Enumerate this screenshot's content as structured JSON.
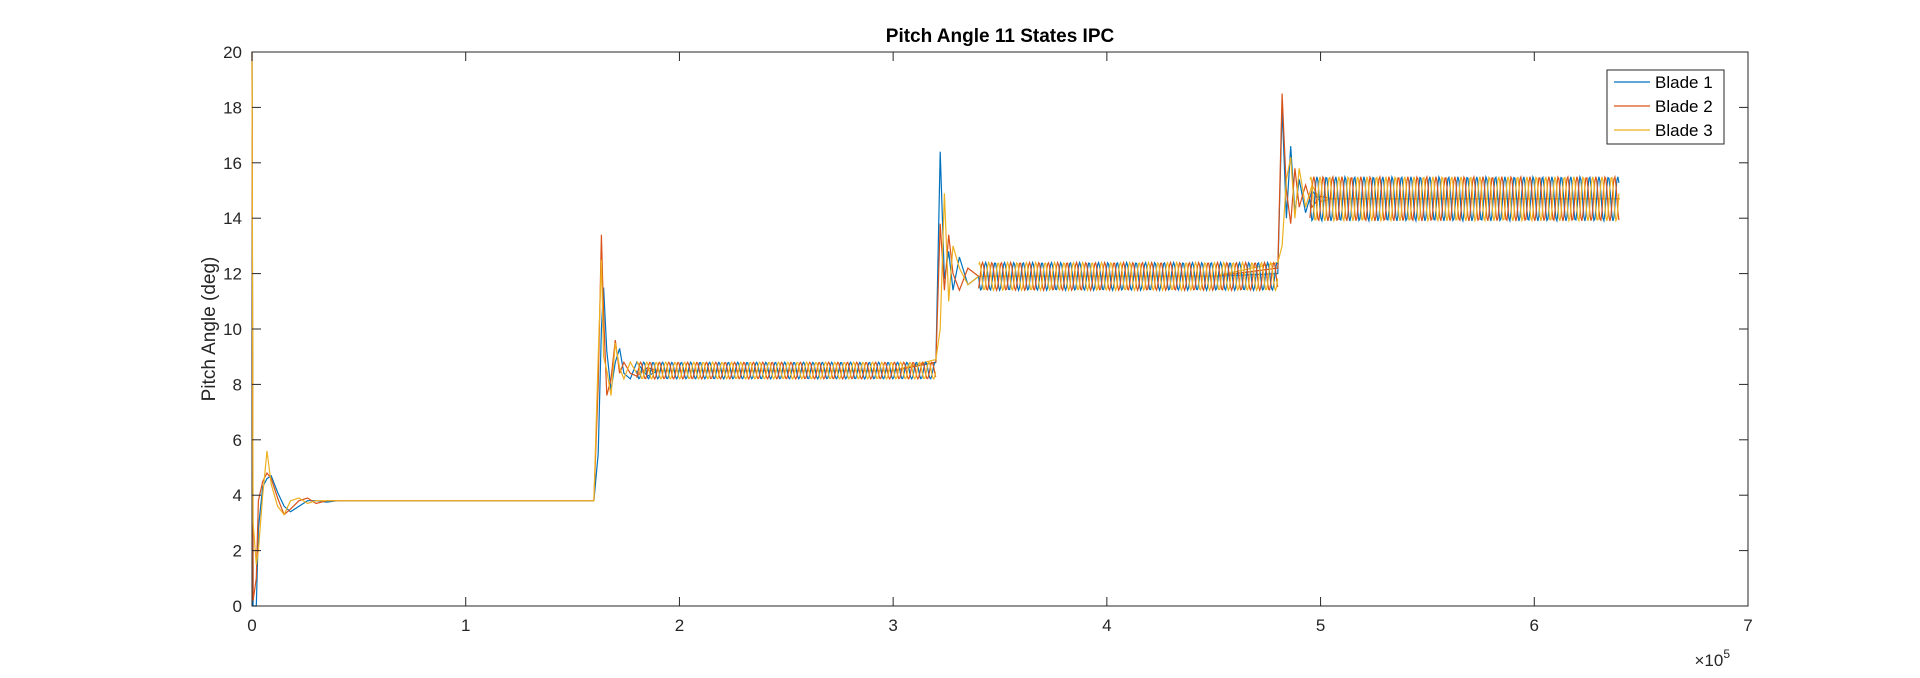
{
  "chart_data": {
    "type": "line",
    "title": "Pitch Angle 11 States IPC",
    "xlabel": "",
    "ylabel": "Pitch Angle (deg)",
    "xlim": [
      0,
      7
    ],
    "ylim": [
      0,
      20
    ],
    "x_ticks": [
      0,
      1,
      2,
      3,
      4,
      5,
      6,
      7
    ],
    "y_ticks": [
      0,
      2,
      4,
      6,
      8,
      10,
      12,
      14,
      16,
      18,
      20
    ],
    "x_exponent_base": "×10",
    "x_exponent_power": "5",
    "grid": false,
    "legend_position": "top-right",
    "colors": {
      "blade1": "#0072BD",
      "blade2": "#D95319",
      "blade3": "#EDB120",
      "axis": "#262626"
    },
    "series": [
      {
        "name": "Blade 1",
        "x": [
          0,
          0.005,
          0.02,
          0.03,
          0.05,
          0.07,
          0.09,
          0.12,
          0.15,
          0.18,
          0.22,
          0.26,
          0.3,
          0.35,
          0.4,
          0.6,
          0.8,
          1.0,
          1.2,
          1.4,
          1.55,
          1.6,
          1.62,
          1.635,
          1.645,
          1.66,
          1.68,
          1.7,
          1.72,
          1.74,
          1.77,
          1.8,
          1.85,
          1.9,
          2.0,
          2.5,
          3.0,
          3.2,
          3.22,
          3.24,
          3.26,
          3.28,
          3.31,
          3.35,
          3.4,
          3.45,
          3.5,
          4.0,
          4.5,
          4.8,
          4.82,
          4.84,
          4.86,
          4.88,
          4.9,
          4.93,
          4.96,
          5.0,
          5.05,
          5.1,
          6.0,
          6.4
        ],
        "y": [
          20,
          0,
          0,
          2.8,
          4.3,
          4.6,
          4.7,
          4.1,
          3.6,
          3.4,
          3.6,
          3.8,
          3.8,
          3.75,
          3.8,
          3.8,
          3.8,
          3.8,
          3.8,
          3.8,
          3.8,
          3.8,
          5.5,
          10.0,
          11.5,
          9.2,
          7.8,
          8.8,
          9.3,
          8.4,
          8.2,
          8.8,
          8.3,
          8.5,
          8.5,
          8.5,
          8.5,
          8.8,
          16.4,
          11.8,
          12.8,
          11.4,
          12.6,
          11.6,
          11.9,
          11.9,
          11.9,
          11.9,
          11.9,
          12.0,
          18.0,
          14.0,
          16.6,
          14.2,
          15.4,
          14.2,
          15.0,
          14.6,
          14.7,
          14.7,
          14.7,
          14.7
        ]
      },
      {
        "name": "Blade 2",
        "x": [
          0,
          0.005,
          0.02,
          0.03,
          0.05,
          0.07,
          0.09,
          0.12,
          0.15,
          0.18,
          0.22,
          0.26,
          0.3,
          0.35,
          0.4,
          0.6,
          0.8,
          1.0,
          1.2,
          1.4,
          1.55,
          1.6,
          1.62,
          1.635,
          1.645,
          1.66,
          1.68,
          1.7,
          1.72,
          1.74,
          1.77,
          1.8,
          1.85,
          1.9,
          2.0,
          2.5,
          3.0,
          3.2,
          3.22,
          3.24,
          3.26,
          3.28,
          3.31,
          3.35,
          3.4,
          3.45,
          3.5,
          4.0,
          4.5,
          4.8,
          4.82,
          4.84,
          4.86,
          4.88,
          4.9,
          4.93,
          4.96,
          5.0,
          5.05,
          5.1,
          6.0,
          6.4
        ],
        "y": [
          20,
          0.2,
          1.0,
          3.8,
          4.5,
          4.8,
          4.6,
          3.9,
          3.3,
          3.5,
          3.8,
          3.9,
          3.7,
          3.8,
          3.8,
          3.8,
          3.8,
          3.8,
          3.8,
          3.8,
          3.8,
          3.8,
          8.0,
          13.4,
          10.5,
          7.6,
          8.2,
          9.6,
          8.4,
          8.8,
          8.4,
          8.3,
          8.6,
          8.5,
          8.5,
          8.5,
          8.5,
          8.8,
          13.8,
          11.4,
          13.4,
          12.0,
          11.4,
          12.2,
          11.9,
          11.9,
          11.9,
          11.9,
          11.9,
          12.2,
          18.5,
          15.0,
          13.8,
          15.8,
          14.4,
          15.2,
          14.4,
          14.8,
          14.7,
          14.7,
          14.7,
          14.7
        ]
      },
      {
        "name": "Blade 3",
        "x": [
          0,
          0.005,
          0.02,
          0.03,
          0.05,
          0.07,
          0.09,
          0.12,
          0.15,
          0.18,
          0.22,
          0.26,
          0.3,
          0.35,
          0.4,
          0.6,
          0.8,
          1.0,
          1.2,
          1.4,
          1.55,
          1.6,
          1.62,
          1.635,
          1.645,
          1.66,
          1.68,
          1.7,
          1.72,
          1.74,
          1.77,
          1.8,
          1.85,
          1.9,
          2.0,
          2.5,
          3.0,
          3.2,
          3.22,
          3.24,
          3.26,
          3.28,
          3.31,
          3.35,
          3.4,
          3.45,
          3.5,
          4.0,
          4.5,
          4.8,
          4.82,
          4.84,
          4.86,
          4.88,
          4.9,
          4.93,
          4.96,
          5.0,
          5.05,
          5.1,
          6.0,
          6.4
        ],
        "y": [
          20,
          3.0,
          1.5,
          2.0,
          4.0,
          5.6,
          4.4,
          3.6,
          3.3,
          3.8,
          3.9,
          3.7,
          3.8,
          3.8,
          3.8,
          3.8,
          3.8,
          3.8,
          3.8,
          3.8,
          3.8,
          3.8,
          9.0,
          12.5,
          9.0,
          8.5,
          7.6,
          9.5,
          8.6,
          8.2,
          8.8,
          8.4,
          8.5,
          8.5,
          8.5,
          8.5,
          8.5,
          8.9,
          10.0,
          14.9,
          11.0,
          13.0,
          12.2,
          11.6,
          11.9,
          11.9,
          11.9,
          11.9,
          11.9,
          12.4,
          13.0,
          15.4,
          16.2,
          14.0,
          15.8,
          14.4,
          15.2,
          14.6,
          14.7,
          14.7,
          14.7,
          14.7
        ]
      }
    ],
    "oscillation_bands": [
      {
        "x_start": 1.8,
        "x_end": 3.2,
        "y_low": 8.2,
        "y_high": 8.8
      },
      {
        "x_start": 3.4,
        "x_end": 4.8,
        "y_low": 11.4,
        "y_high": 12.4
      },
      {
        "x_start": 4.95,
        "x_end": 6.4,
        "y_low": 13.9,
        "y_high": 15.5
      }
    ]
  }
}
